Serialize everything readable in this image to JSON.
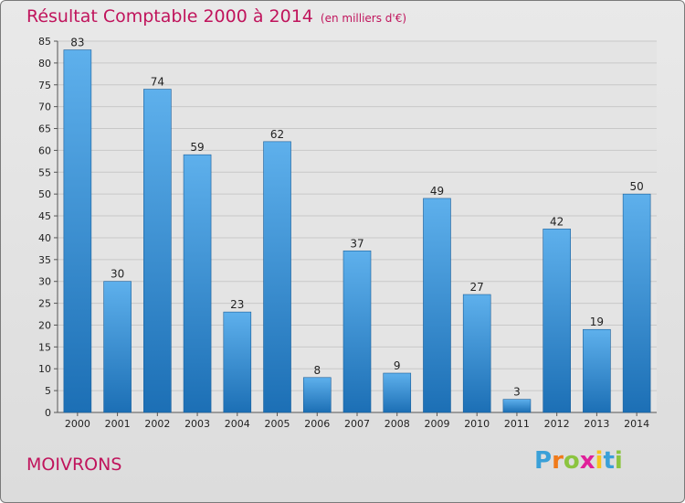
{
  "header": {
    "title": "Résultat Comptable 2000 à 2014",
    "unit": "(en milliers d'€)"
  },
  "footer": {
    "place": "MOIVRONS",
    "logo_letters": [
      "P",
      "r",
      "o",
      "x",
      "i",
      "t",
      "i"
    ],
    "logo_colors": [
      "#3aa0d8",
      "#f07a1a",
      "#8bc43f",
      "#e0209a",
      "#f7c21e",
      "#3aa0d8",
      "#8bc43f"
    ]
  },
  "colors": {
    "title": "#c0145c",
    "bar_light": "#5eb0ec",
    "bar_dark": "#1c6fb5"
  },
  "chart_data": {
    "type": "bar",
    "title": "Résultat Comptable 2000 à 2014",
    "subtitle": "(en milliers d'€)",
    "categories": [
      "2000",
      "2001",
      "2002",
      "2003",
      "2004",
      "2005",
      "2006",
      "2007",
      "2008",
      "2009",
      "2010",
      "2011",
      "2012",
      "2013",
      "2014"
    ],
    "values": [
      83,
      30,
      74,
      59,
      23,
      62,
      8,
      37,
      9,
      49,
      27,
      3,
      42,
      19,
      50
    ],
    "ylim": [
      0,
      85
    ],
    "yticks": [
      0,
      5,
      10,
      15,
      20,
      25,
      30,
      35,
      40,
      45,
      50,
      55,
      60,
      65,
      70,
      75,
      80,
      85
    ],
    "grid": true
  }
}
